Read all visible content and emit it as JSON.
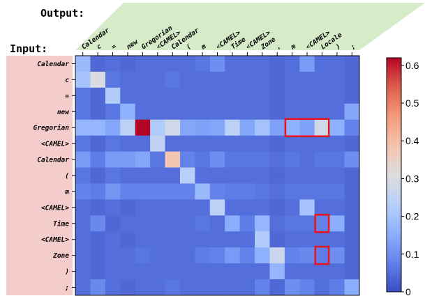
{
  "chart_data": {
    "type": "heatmap",
    "output_label": "Output:",
    "input_label": "Input:",
    "x_tokens": [
      "Calendar",
      "c",
      "=",
      "new",
      "Gregorian",
      "<CAMEL>",
      "Calendar",
      "(",
      "m",
      "<CAMEL>",
      "Time",
      "<CAMEL>",
      "Zone",
      ",",
      "m",
      "<CAMEL>",
      "Locale",
      ")",
      ";"
    ],
    "y_tokens": [
      "Calendar",
      "c",
      "=",
      "new",
      "Gregorian",
      "<CAMEL>",
      "Calendar",
      "(",
      "m",
      "<CAMEL>",
      "Time",
      "<CAMEL>",
      "Zone",
      ")",
      ";"
    ],
    "values": [
      [
        0.18,
        0.04,
        0.05,
        0.04,
        0.05,
        0.05,
        0.05,
        0.05,
        0.06,
        0.1,
        0.05,
        0.05,
        0.05,
        0.04,
        0.05,
        0.12,
        0.05,
        0.05,
        0.04
      ],
      [
        0.2,
        0.3,
        0.06,
        0.05,
        0.05,
        0.05,
        0.06,
        0.05,
        0.05,
        0.05,
        0.05,
        0.05,
        0.05,
        0.04,
        0.05,
        0.05,
        0.05,
        0.05,
        0.04
      ],
      [
        0.06,
        0.04,
        0.22,
        0.05,
        0.05,
        0.05,
        0.05,
        0.05,
        0.05,
        0.05,
        0.05,
        0.05,
        0.05,
        0.04,
        0.05,
        0.05,
        0.05,
        0.05,
        0.04
      ],
      [
        0.06,
        0.04,
        0.06,
        0.16,
        0.05,
        0.05,
        0.05,
        0.05,
        0.05,
        0.05,
        0.05,
        0.05,
        0.05,
        0.04,
        0.05,
        0.05,
        0.05,
        0.05,
        0.14
      ],
      [
        0.17,
        0.17,
        0.14,
        0.24,
        0.62,
        0.22,
        0.28,
        0.14,
        0.13,
        0.14,
        0.24,
        0.14,
        0.2,
        0.13,
        0.16,
        0.13,
        0.28,
        0.16,
        0.08
      ],
      [
        0.06,
        0.04,
        0.06,
        0.05,
        0.05,
        0.25,
        0.05,
        0.05,
        0.05,
        0.05,
        0.05,
        0.05,
        0.05,
        0.04,
        0.05,
        0.05,
        0.05,
        0.05,
        0.04
      ],
      [
        0.12,
        0.07,
        0.12,
        0.12,
        0.14,
        0.06,
        0.38,
        0.08,
        0.06,
        0.1,
        0.06,
        0.06,
        0.06,
        0.05,
        0.06,
        0.05,
        0.06,
        0.06,
        0.1
      ],
      [
        0.06,
        0.04,
        0.06,
        0.05,
        0.05,
        0.05,
        0.05,
        0.23,
        0.05,
        0.05,
        0.05,
        0.05,
        0.05,
        0.04,
        0.05,
        0.05,
        0.05,
        0.05,
        0.04
      ],
      [
        0.08,
        0.07,
        0.11,
        0.08,
        0.08,
        0.08,
        0.08,
        0.08,
        0.18,
        0.08,
        0.07,
        0.07,
        0.06,
        0.05,
        0.06,
        0.06,
        0.06,
        0.06,
        0.04
      ],
      [
        0.05,
        0.04,
        0.05,
        0.04,
        0.05,
        0.05,
        0.05,
        0.05,
        0.05,
        0.24,
        0.05,
        0.05,
        0.05,
        0.04,
        0.05,
        0.2,
        0.05,
        0.05,
        0.04
      ],
      [
        0.05,
        0.09,
        0.04,
        0.05,
        0.05,
        0.05,
        0.05,
        0.05,
        0.06,
        0.05,
        0.15,
        0.07,
        0.17,
        0.05,
        0.06,
        0.06,
        0.08,
        0.15,
        0.04
      ],
      [
        0.05,
        0.04,
        0.05,
        0.04,
        0.05,
        0.05,
        0.05,
        0.05,
        0.05,
        0.05,
        0.05,
        0.05,
        0.22,
        0.04,
        0.05,
        0.05,
        0.05,
        0.05,
        0.04
      ],
      [
        0.05,
        0.04,
        0.05,
        0.05,
        0.06,
        0.05,
        0.05,
        0.05,
        0.07,
        0.08,
        0.12,
        0.08,
        0.16,
        0.27,
        0.08,
        0.09,
        0.07,
        0.1,
        0.04
      ],
      [
        0.05,
        0.04,
        0.05,
        0.05,
        0.05,
        0.05,
        0.05,
        0.05,
        0.05,
        0.05,
        0.05,
        0.05,
        0.05,
        0.17,
        0.05,
        0.05,
        0.05,
        0.05,
        0.04
      ],
      [
        0.05,
        0.09,
        0.05,
        0.04,
        0.05,
        0.05,
        0.06,
        0.05,
        0.05,
        0.05,
        0.05,
        0.05,
        0.08,
        0.04,
        0.1,
        0.08,
        0.05,
        0.07,
        0.15
      ]
    ],
    "highlights": [
      {
        "row": 4,
        "col_start": 14,
        "col_end": 16
      },
      {
        "row": 10,
        "col_start": 16,
        "col_end": 16
      },
      {
        "row": 12,
        "col_start": 16,
        "col_end": 16
      }
    ],
    "colorbar": {
      "min": 0,
      "max": 0.62,
      "ticks": [
        0,
        0.1,
        0.2,
        0.3,
        0.4,
        0.5,
        0.6
      ],
      "colormap": "coolwarm"
    },
    "colors": {
      "highlight": "#e8141c",
      "row_band": "#f5cccc",
      "col_band": "#d6ecc9"
    }
  }
}
